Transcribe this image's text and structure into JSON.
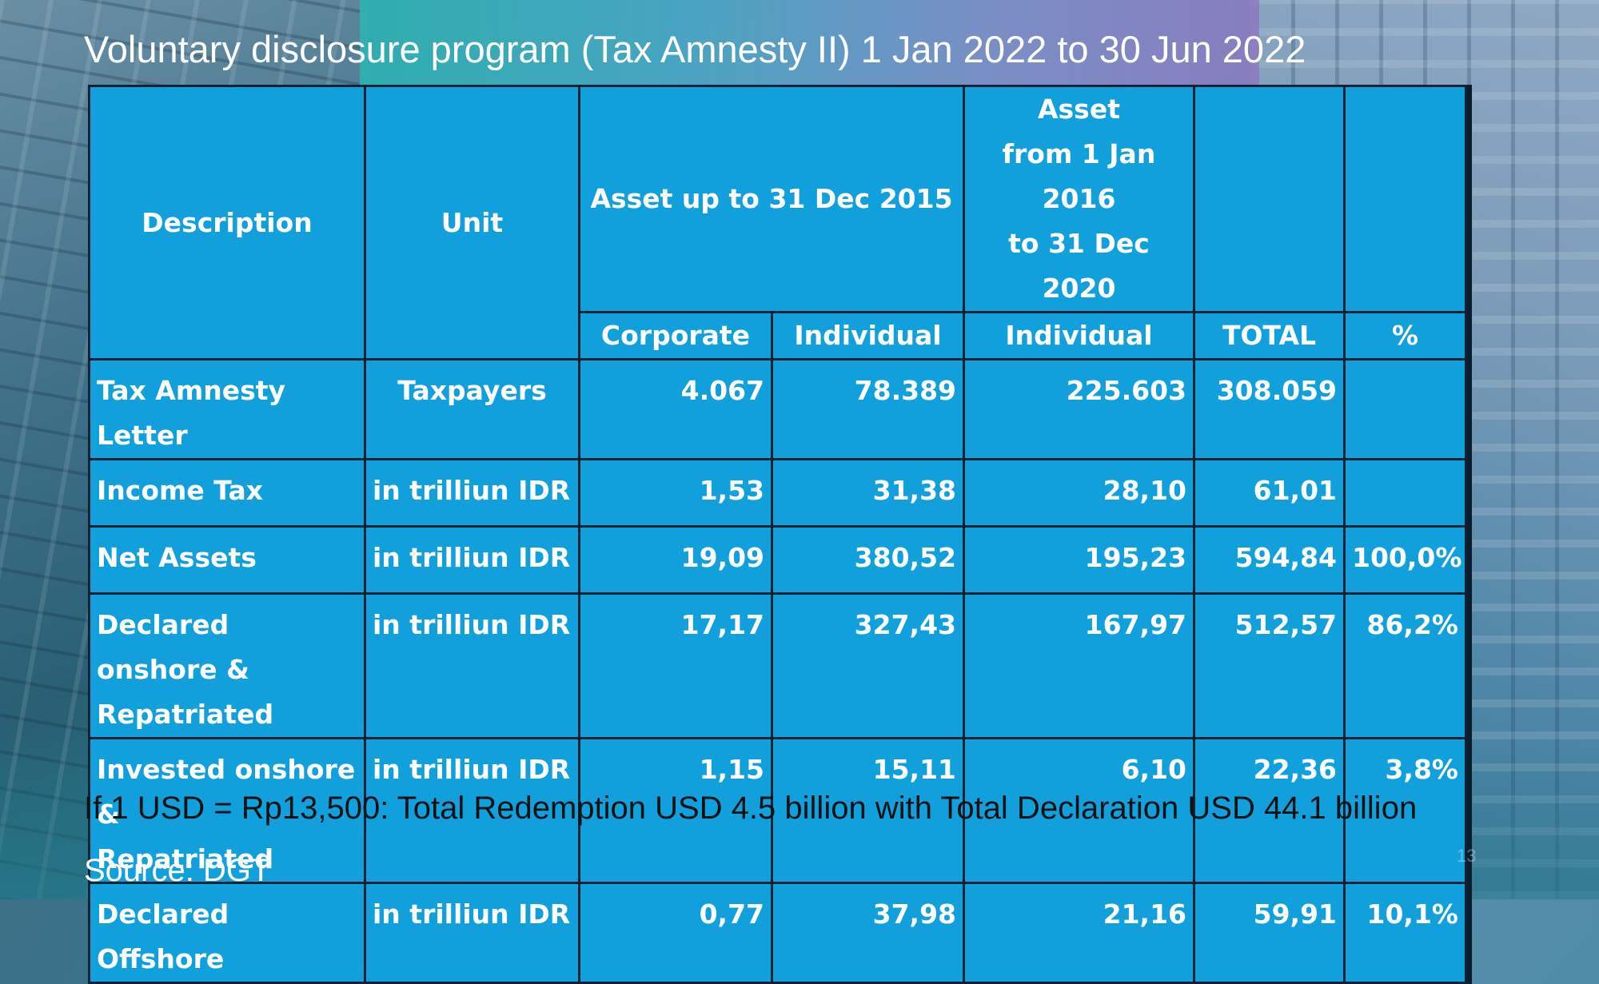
{
  "slide": {
    "title": "Voluntary disclosure program (Tax Amnesty II) 1 Jan 2022 to 30 Jun 2022",
    "footnote": "If 1 USD = Rp13,500: Total Redemption USD 4.5 billion with Total Declaration USD 44.1 billion",
    "source": "Source: DGT",
    "page_number": "13"
  },
  "table": {
    "header": {
      "description": "Description",
      "unit": "Unit",
      "asset_2015": "Asset up to 31 Dec 2015",
      "asset_2016_line1": "Asset",
      "asset_2016_line2": "from 1 Jan 2016",
      "asset_2016_line3": "to 31 Dec 2020",
      "corporate": "Corporate",
      "individual_2015": "Individual",
      "individual_2016": "Individual",
      "total": "TOTAL",
      "pct": "%"
    },
    "rows": [
      {
        "description": "Tax Amnesty Letter",
        "unit": "Taxpayers",
        "corporate": "4.067",
        "individual_2015": "78.389",
        "individual_2016": "225.603",
        "total": "308.059",
        "pct": ""
      },
      {
        "description": "Income Tax",
        "unit": "in trilliun IDR",
        "corporate": "1,53",
        "individual_2015": "31,38",
        "individual_2016": "28,10",
        "total": "61,01",
        "pct": ""
      },
      {
        "description": "Net Assets",
        "unit": "in trilliun IDR",
        "corporate": "19,09",
        "individual_2015": "380,52",
        "individual_2016": "195,23",
        "total": "594,84",
        "pct": "100,0%"
      },
      {
        "description_line1": "Declared onshore &",
        "description_line2": "Repatriated",
        "unit": "in trilliun IDR",
        "corporate": "17,17",
        "individual_2015": "327,43",
        "individual_2016": "167,97",
        "total": "512,57",
        "pct": "86,2%"
      },
      {
        "description_line1": "Invested onshore &",
        "description_line2": "Repatriated",
        "unit": "in trilliun IDR",
        "corporate": "1,15",
        "individual_2015": "15,11",
        "individual_2016": "6,10",
        "total": "22,36",
        "pct": "3,8%"
      },
      {
        "description": "Declared Offshore",
        "unit": "in trilliun IDR",
        "corporate": "0,77",
        "individual_2015": "37,98",
        "individual_2016": "21,16",
        "total": "59,91",
        "pct": "10,1%"
      }
    ]
  }
}
